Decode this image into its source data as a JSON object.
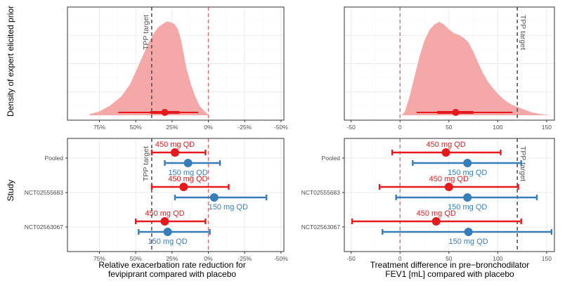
{
  "colors": {
    "prior_fill": "#f4a9a8",
    "red": "#e41a1c",
    "blue": "#377eb8",
    "panel_bg": "#ffffff",
    "panel_border": "#333333",
    "grid_major": "#ebebeb",
    "grid_minor": "#f5f5f5",
    "tick_text": "#4d4d4d",
    "tpp_line": "#555555",
    "null_line": "#e36b6b"
  },
  "labels": {
    "y_top": "Density of expert elicited prior",
    "y_bottom": "Study",
    "x_left_line1": "Relative exacerbation rate reduction for",
    "x_left_line2": "fevipiprant compared with placebo",
    "x_right_line1": "Treatment difference in pre−bronchodilator",
    "x_right_line2": "FEV1 [mL] compared with placebo",
    "tpp_target": "TPP target"
  },
  "chart_data": [
    {
      "id": "rate-prior",
      "type": "area",
      "title": "",
      "xlabel": "",
      "ylabel": "Density of expert elicited prior",
      "xlim": [
        97,
        -52
      ],
      "x_reversed": true,
      "x_ticks": [
        75,
        50,
        25,
        0,
        -25,
        -50
      ],
      "x_tick_labels": [
        "75%",
        "50%",
        "25%",
        "0%",
        "-25%",
        "-50%"
      ],
      "density": {
        "x": [
          82,
          75,
          68,
          60,
          54,
          49,
          45,
          42,
          40,
          37,
          34,
          31,
          29,
          27,
          25,
          23,
          21,
          19,
          17,
          15,
          12,
          9,
          6,
          3,
          1,
          0
        ],
        "y": [
          0.01,
          0.04,
          0.1,
          0.2,
          0.33,
          0.5,
          0.64,
          0.75,
          0.81,
          0.89,
          0.95,
          0.98,
          1.0,
          1.0,
          0.99,
          0.97,
          0.92,
          0.82,
          0.66,
          0.5,
          0.33,
          0.2,
          0.1,
          0.05,
          0.02,
          0.0
        ]
      },
      "point": 30,
      "interval_inner": [
        40,
        20
      ],
      "interval_outer": [
        62,
        7
      ],
      "tpp_target": 39,
      "null_line": 0
    },
    {
      "id": "fev1-prior",
      "type": "area",
      "title": "",
      "xlabel": "",
      "ylabel": "",
      "xlim": [
        -57,
        158
      ],
      "x_ticks": [
        -50,
        0,
        50,
        100,
        150
      ],
      "x_tick_labels": [
        "-50",
        "0",
        "50",
        "100",
        "150"
      ],
      "density": {
        "x": [
          2,
          5,
          10,
          15,
          20,
          25,
          30,
          35,
          40,
          45,
          50,
          55,
          60,
          65,
          70,
          75,
          80,
          85,
          90,
          95,
          100,
          105,
          110,
          115,
          120,
          125,
          130,
          135,
          140,
          145,
          150,
          153
        ],
        "y": [
          0.0,
          0.04,
          0.21,
          0.42,
          0.63,
          0.8,
          0.91,
          0.97,
          1.0,
          0.97,
          0.92,
          0.88,
          0.86,
          0.83,
          0.78,
          0.68,
          0.56,
          0.45,
          0.36,
          0.29,
          0.23,
          0.18,
          0.14,
          0.11,
          0.09,
          0.07,
          0.05,
          0.03,
          0.02,
          0.01,
          0.005,
          0.0
        ]
      },
      "point": 57,
      "interval_inner": [
        38,
        75
      ],
      "interval_outer": [
        17,
        115
      ],
      "tpp_target": 120,
      "null_line": 0
    },
    {
      "id": "rate-studies",
      "type": "scatter",
      "title": "",
      "xlabel": "Relative exacerbation rate reduction for fevipiprant compared with placebo",
      "ylabel": "Study",
      "xlim": [
        97,
        -52
      ],
      "x_reversed": true,
      "x_ticks": [
        75,
        50,
        25,
        0,
        -25,
        -50
      ],
      "x_tick_labels": [
        "75%",
        "50%",
        "25%",
        "0%",
        "-25%",
        "-50%"
      ],
      "categories": [
        "Pooled",
        "NCT02555683",
        "NCT02563067"
      ],
      "tpp_target": 39,
      "null_line": 0,
      "series": [
        {
          "name": "450 mg QD",
          "color": "red",
          "estimates": [
            23,
            17,
            30
          ],
          "lower": [
            2,
            -14,
            2
          ],
          "upper": [
            39,
            39,
            50
          ]
        },
        {
          "name": "150 mg QD",
          "color": "blue",
          "estimates": [
            14,
            -4,
            28
          ],
          "lower": [
            -8,
            -40,
            -1
          ],
          "upper": [
            30,
            23,
            48
          ]
        }
      ]
    },
    {
      "id": "fev1-studies",
      "type": "scatter",
      "title": "",
      "xlabel": "Treatment difference in pre−bronchodilator FEV1 [mL] compared with placebo",
      "ylabel": "",
      "xlim": [
        -57,
        158
      ],
      "x_ticks": [
        -50,
        0,
        50,
        100,
        150
      ],
      "x_tick_labels": [
        "-50",
        "0",
        "50",
        "100",
        "150"
      ],
      "categories": [
        "Pooled",
        "NCT02555683",
        "NCT02563067"
      ],
      "tpp_target": 120,
      "null_line": 0,
      "series": [
        {
          "name": "450 mg QD",
          "color": "red",
          "estimates": [
            47,
            50,
            37
          ],
          "lower": [
            -8,
            -21,
            -49
          ],
          "upper": [
            103,
            121,
            124
          ]
        },
        {
          "name": "150 mg QD",
          "color": "blue",
          "estimates": [
            69,
            69,
            70
          ],
          "lower": [
            13,
            -4,
            -18
          ],
          "upper": [
            124,
            140,
            155
          ]
        }
      ]
    }
  ]
}
